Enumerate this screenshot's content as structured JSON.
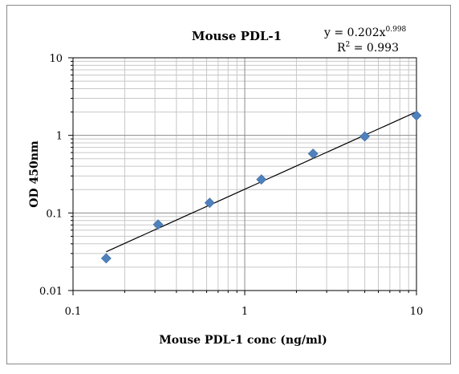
{
  "chart_data": {
    "type": "scatter",
    "title": "Mouse PDL-1",
    "xlabel": "Mouse PDL-1 conc (ng/ml)",
    "ylabel": "OD 450nm",
    "x_scale": "log",
    "y_scale": "log",
    "xlim": [
      0.1,
      10
    ],
    "ylim": [
      0.01,
      10
    ],
    "x_tick_labels": [
      "0.1",
      "1",
      "10"
    ],
    "y_tick_labels": [
      "0.01",
      "0.1",
      "1",
      "10"
    ],
    "grid": true,
    "legend": "none",
    "series": [
      {
        "x": [
          0.156,
          0.313,
          0.625,
          1.25,
          2.5,
          5,
          10
        ],
        "y": [
          0.026,
          0.071,
          0.135,
          0.27,
          0.58,
          0.97,
          1.8
        ],
        "marker": "diamond",
        "color": "#4F81BD"
      }
    ],
    "trendline": {
      "type": "power",
      "a": 0.202,
      "b": 0.998,
      "x_range": [
        0.156,
        10
      ],
      "color": "#000000"
    },
    "annotations": {
      "equation_base": "y = 0.202x",
      "equation_exp": "0.998",
      "r2_label": "R",
      "r2_exp": "2",
      "r2_value": " = 0.993"
    }
  }
}
